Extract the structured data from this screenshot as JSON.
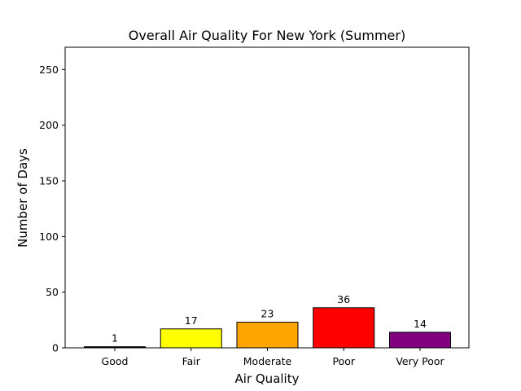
{
  "chart_data": {
    "type": "bar",
    "title": "Overall Air Quality For New York (Summer)",
    "xlabel": "Air Quality",
    "ylabel": "Number of Days",
    "categories": [
      "Good",
      "Fair",
      "Moderate",
      "Poor",
      "Very Poor"
    ],
    "values": [
      1,
      17,
      23,
      36,
      14
    ],
    "data_labels": [
      "1",
      "17",
      "23",
      "36",
      "14"
    ],
    "colors": [
      "#000000",
      "#ffff00",
      "#ffa500",
      "#ff0000",
      "#800080"
    ],
    "ylim": [
      0,
      270
    ],
    "yticks": [
      0,
      50,
      100,
      150,
      200,
      250
    ],
    "grid": false,
    "legend": "none"
  }
}
